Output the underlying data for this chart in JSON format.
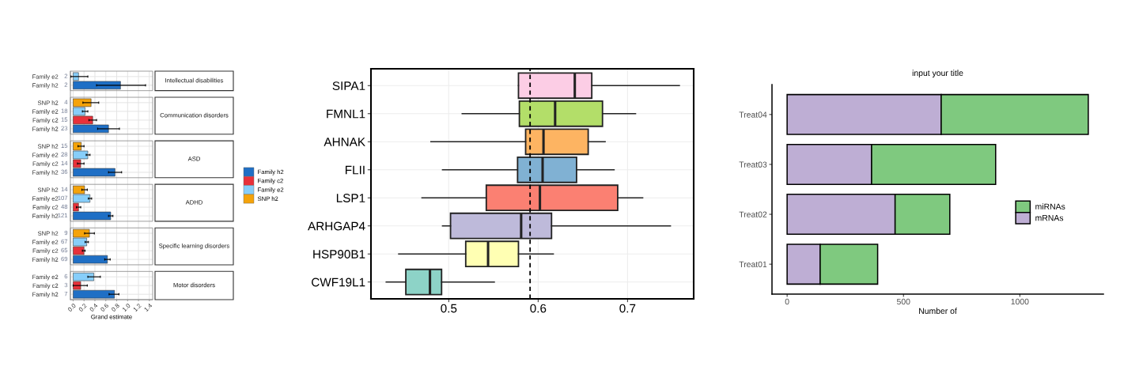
{
  "chart_data": [
    {
      "type": "bar",
      "orientation": "horizontal",
      "xlabel": "Grand estimate",
      "categories": [
        "Family e2",
        "Family h2",
        null,
        "SNP h2",
        "Family e2",
        "Family c2",
        "Family h2",
        null,
        "SNP h2",
        "Family e2",
        "Family c2",
        "Family h2",
        null,
        "SNP h2",
        "Family e2",
        "Family c2",
        "Family h2",
        null,
        "SNP h2",
        "Family e2",
        "Family c2",
        "Family h2",
        null,
        "Family e2",
        "Family c2",
        "Family h2"
      ],
      "series": [
        {
          "name": "Family h2",
          "color": "#1f6fc5",
          "values": [
            null,
            0.87,
            null,
            null,
            null,
            null,
            0.65,
            null,
            null,
            null,
            null,
            0.77,
            null,
            null,
            null,
            null,
            0.69,
            null,
            null,
            null,
            null,
            0.63,
            null,
            null,
            null,
            0.76
          ],
          "errors": [
            null,
            [
              0.43,
              1.33
            ],
            null,
            null,
            null,
            null,
            [
              0.45,
              0.85
            ],
            null,
            null,
            null,
            null,
            [
              0.65,
              0.89
            ],
            null,
            null,
            null,
            null,
            [
              0.65,
              0.73
            ],
            null,
            null,
            null,
            null,
            [
              0.58,
              0.68
            ],
            null,
            null,
            null,
            [
              0.66,
              0.84
            ]
          ]
        },
        {
          "name": "Family c2",
          "color": "#e8313a",
          "values": [
            null,
            null,
            null,
            null,
            null,
            0.36,
            null,
            null,
            null,
            null,
            0.14,
            null,
            null,
            null,
            null,
            0.1,
            null,
            null,
            null,
            null,
            0.2,
            null,
            null,
            null,
            0.14,
            null
          ],
          "errors": [
            null,
            null,
            null,
            null,
            null,
            [
              0.29,
              0.43
            ],
            null,
            null,
            null,
            null,
            [
              0.08,
              0.2
            ],
            null,
            null,
            null,
            null,
            [
              0.06,
              0.14
            ],
            null,
            null,
            null,
            null,
            [
              0.17,
              0.22
            ],
            null,
            null,
            null,
            [
              0.0,
              0.26
            ],
            null
          ]
        },
        {
          "name": "Family e2",
          "color": "#87cefa",
          "values": [
            0.1,
            null,
            null,
            null,
            0.22,
            null,
            null,
            null,
            null,
            0.27,
            null,
            null,
            null,
            null,
            0.31,
            null,
            null,
            null,
            null,
            0.25,
            null,
            null,
            null,
            0.38,
            null,
            null
          ],
          "errors": [
            [
              -0.04,
              0.27
            ],
            null,
            null,
            null,
            [
              0.17,
              0.27
            ],
            null,
            null,
            null,
            null,
            [
              0.24,
              0.31
            ],
            null,
            null,
            null,
            null,
            [
              0.28,
              0.34
            ],
            null,
            null,
            null,
            null,
            [
              0.22,
              0.28
            ],
            null,
            null,
            null,
            [
              0.27,
              0.5
            ],
            null,
            null
          ]
        },
        {
          "name": "SNP h2",
          "color": "#f5a30a",
          "values": [
            null,
            null,
            null,
            0.33,
            null,
            null,
            null,
            null,
            0.15,
            null,
            null,
            null,
            null,
            0.21,
            null,
            null,
            null,
            null,
            0.3,
            null,
            null,
            null,
            null,
            null,
            null,
            null
          ],
          "errors": [
            null,
            null,
            null,
            [
              0.18,
              0.47
            ],
            null,
            null,
            null,
            null,
            [
              0.09,
              0.2
            ],
            null,
            null,
            null,
            null,
            [
              0.16,
              0.26
            ],
            null,
            null,
            null,
            null,
            [
              0.21,
              0.39
            ],
            null,
            null,
            null,
            null,
            null,
            null,
            null
          ]
        }
      ],
      "annotations": [
        "2",
        "2",
        "4",
        "18",
        "15",
        "23",
        "15",
        "28",
        "14",
        "36",
        "14",
        "107",
        "48",
        "121",
        "9",
        "67",
        "65",
        "69",
        "6",
        "3",
        "7",
        "Intellectual disabilities",
        "Communication disorders",
        "ASD",
        "ADHD",
        "Specific learning disorders",
        "Motor disorders"
      ],
      "xlim": [
        -0.05,
        1.46
      ],
      "xticks": [
        {
          "value": 0,
          "label": "0.0"
        },
        0.2,
        0.4,
        0.6,
        0.8,
        {
          "value": 1,
          "label": "1.0"
        },
        1.2,
        1.4
      ],
      "grid": true,
      "legend": "right"
    },
    {
      "type": "box",
      "orientation": "horizontal",
      "categories": [
        "SIPA1",
        "FMNL1",
        "AHNAK",
        "FLII",
        "LSP1",
        "ARHGAP4",
        "HSP90B1",
        "CWF19L1"
      ],
      "colors": [
        "#fccde5",
        "#b3de69",
        "#fdb462",
        "#80b1d3",
        "#fb8072",
        "#bebada",
        "#ffffb3",
        "#8dd3c7"
      ],
      "boxes": [
        {
          "low": 0.578,
          "q1": 0.578,
          "median": 0.641,
          "q3": 0.66,
          "high": 0.758
        },
        {
          "low": 0.515,
          "q1": 0.579,
          "median": 0.619,
          "q3": 0.672,
          "high": 0.709
        },
        {
          "low": 0.48,
          "q1": 0.586,
          "median": 0.606,
          "q3": 0.656,
          "high": 0.675
        },
        {
          "low": 0.493,
          "q1": 0.577,
          "median": 0.605,
          "q3": 0.643,
          "high": 0.685
        },
        {
          "low": 0.47,
          "q1": 0.542,
          "median": 0.602,
          "q3": 0.689,
          "high": 0.717
        },
        {
          "low": 0.493,
          "q1": 0.502,
          "median": 0.581,
          "q3": 0.615,
          "high": 0.748
        },
        {
          "low": 0.444,
          "q1": 0.519,
          "median": 0.544,
          "q3": 0.578,
          "high": 0.617
        },
        {
          "low": 0.43,
          "q1": 0.452,
          "median": 0.479,
          "q3": 0.492,
          "high": 0.551
        }
      ],
      "xlim": [
        0.413,
        0.774
      ],
      "xticks": [
        0.5,
        0.6,
        0.7
      ],
      "ref_lines": [
        {
          "axis": "x",
          "value": 0.591,
          "line_style": "dashed",
          "color": "#000000"
        }
      ],
      "grid": true
    },
    {
      "type": "bar",
      "orientation": "horizontal",
      "stacked": true,
      "title": "input your title",
      "xlabel": "Number of",
      "categories": [
        "Treat04",
        "Treat03",
        "Treat02",
        "Treat01"
      ],
      "series": [
        {
          "name": "mRNAs",
          "color": "#beaed4",
          "values": [
            662,
            363,
            464,
            142
          ]
        },
        {
          "name": "miRNAs",
          "color": "#7fc97f",
          "values": [
            632,
            533,
            235,
            247
          ]
        }
      ],
      "xlim": [
        -65,
        1359
      ],
      "xticks": [
        0,
        500,
        1000
      ],
      "legend": "right",
      "grid": false
    }
  ]
}
